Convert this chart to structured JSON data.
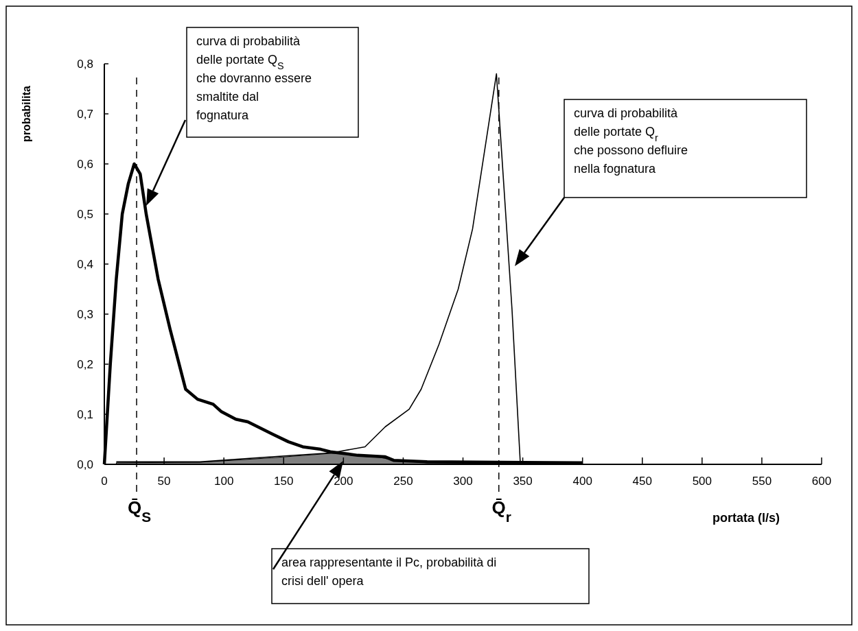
{
  "chart_data": {
    "type": "line",
    "xlabel": "portata (l/s)",
    "ylabel": "probabilita",
    "xlim": [
      0,
      600
    ],
    "xticks": [
      0,
      50,
      100,
      150,
      200,
      250,
      300,
      350,
      400,
      450,
      500,
      550,
      600
    ],
    "ylim": [
      0,
      0.8
    ],
    "yticks": [
      {
        "value": 0,
        "label": "0,0"
      },
      {
        "value": 0.1,
        "label": "0,1"
      },
      {
        "value": 0.2,
        "label": "0,2"
      },
      {
        "value": 0.3,
        "label": "0,3"
      },
      {
        "value": 0.4,
        "label": "0,4"
      },
      {
        "value": 0.5,
        "label": "0,5"
      },
      {
        "value": 0.6,
        "label": "0,6"
      },
      {
        "value": 0.7,
        "label": "0,7"
      },
      {
        "value": 0.8,
        "label": "0,8"
      }
    ],
    "grid": false,
    "marker": "none",
    "series": [
      {
        "type": "area",
        "color": "#808080",
        "x": [
          10,
          80,
          140,
          190,
          205,
          215,
          230,
          245,
          270,
          400
        ],
        "values": [
          0.003,
          0.004,
          0.013,
          0.022,
          0.02,
          0.016,
          0.014,
          0.007,
          0.003,
          0.002
        ]
      },
      {
        "type": "line",
        "color": "#000000",
        "line_style": "solid",
        "x": [
          0,
          5,
          10,
          15,
          20,
          25,
          30,
          35,
          45,
          55,
          68,
          78,
          91,
          98,
          110,
          120,
          141,
          154,
          166,
          181,
          189,
          206,
          212,
          235,
          242,
          270,
          400
        ],
        "values": [
          0,
          0.2,
          0.37,
          0.5,
          0.56,
          0.6,
          0.58,
          0.5,
          0.37,
          0.27,
          0.15,
          0.13,
          0.12,
          0.105,
          0.09,
          0.085,
          0.06,
          0.045,
          0.035,
          0.03,
          0.025,
          0.02,
          0.018,
          0.015,
          0.008,
          0.005,
          0.003
        ]
      },
      {
        "type": "line",
        "color": "#000000",
        "line_style": "solid",
        "x": [
          10,
          80,
          140,
          190,
          218,
          235,
          255,
          265,
          280,
          296,
          308,
          328,
          341,
          348
        ],
        "values": [
          0.005,
          0.005,
          0.015,
          0.023,
          0.035,
          0.075,
          0.11,
          0.15,
          0.24,
          0.35,
          0.47,
          0.78,
          0.31,
          0
        ]
      }
    ],
    "ref_lines": [
      {
        "axis": "x",
        "value": 27,
        "label": "Q̄$_{S}$",
        "line_style": "dashed",
        "color": "#000000"
      },
      {
        "axis": "x",
        "value": 330,
        "label": "Q̄$_{r}$",
        "line_style": "dashed",
        "color": "#000000"
      }
    ],
    "annotations": [
      "curva di probabilità\ndelle portate Q$_{S}$\nche dovranno essere\nsmaltite dal\nfognatura",
      "curva di probabilità\ndelle portate Q$_{r}$\nche possono defluire\nnella fognatura",
      "area rappresentante il Pc, probabilità di\ncrisi dell' opera"
    ]
  }
}
